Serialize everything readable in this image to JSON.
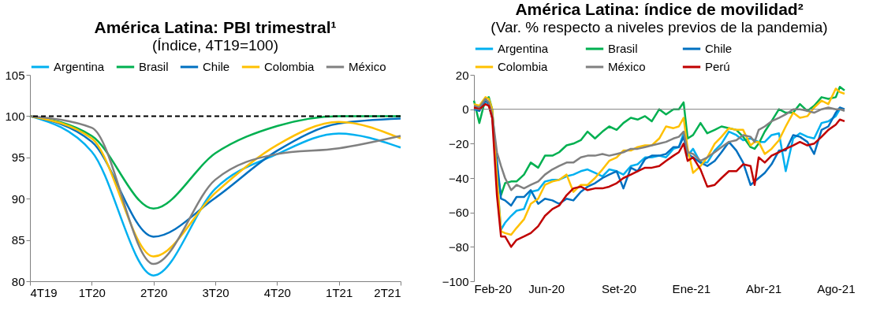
{
  "chart_data": [
    {
      "type": "line",
      "title": "América Latina: PBI trimestral¹",
      "subtitle": "(Índice, 4T19=100)",
      "categories": [
        "4T19",
        "1T20",
        "2T20",
        "3T20",
        "4T20",
        "1T21",
        "2T21"
      ],
      "series": [
        {
          "name": "Argentina",
          "color": "#00b0f0",
          "values": [
            100,
            95.7,
            80.7,
            91.2,
            95.4,
            97.9,
            96.2
          ]
        },
        {
          "name": "Brasil",
          "color": "#00b050",
          "values": [
            100,
            97.6,
            88.8,
            95.5,
            98.8,
            100.0,
            100.0
          ]
        },
        {
          "name": "Chile",
          "color": "#0070c0",
          "values": [
            100,
            96.9,
            85.4,
            90.1,
            95.8,
            99.1,
            99.7
          ]
        },
        {
          "name": "Colombia",
          "color": "#ffc000",
          "values": [
            100,
            97.3,
            83.0,
            90.7,
            96.5,
            99.3,
            97.3
          ]
        },
        {
          "name": "México",
          "color": "#808080",
          "values": [
            100,
            98.6,
            82.1,
            92.3,
            95.4,
            96.1,
            97.6
          ]
        }
      ],
      "ylim": [
        80,
        105
      ],
      "yticks": [
        80,
        85,
        90,
        95,
        100,
        105
      ],
      "ref_lines": [
        {
          "axis": "y",
          "value": 100,
          "color": "#000000",
          "line_style": "dashed"
        }
      ],
      "legend": "top",
      "grid": false,
      "marker": "none",
      "line_style": "solid"
    },
    {
      "type": "line",
      "title": "América Latina: índice de movilidad²",
      "subtitle": "(Var. % respecto a niveles previos de la pandemia)",
      "x": [
        "2020-02-15",
        "2020-02-23",
        "2020-03-03",
        "2020-03-08",
        "2020-03-13",
        "2020-03-20",
        "2020-03-26",
        "2020-04-01",
        "2020-04-10",
        "2020-04-18",
        "2020-04-29",
        "2020-05-09",
        "2020-05-20",
        "2020-05-30",
        "2020-06-10",
        "2020-06-20",
        "2020-07-01",
        "2020-07-11",
        "2020-07-22",
        "2020-08-01",
        "2020-08-12",
        "2020-08-23",
        "2020-09-02",
        "2020-09-13",
        "2020-09-23",
        "2020-10-04",
        "2020-10-14",
        "2020-10-25",
        "2020-11-04",
        "2020-11-15",
        "2020-11-25",
        "2020-12-06",
        "2020-12-14",
        "2020-12-21",
        "2020-12-27",
        "2021-01-04",
        "2021-01-15",
        "2021-01-25",
        "2021-02-05",
        "2021-02-15",
        "2021-02-26",
        "2021-03-09",
        "2021-03-19",
        "2021-03-30",
        "2021-04-05",
        "2021-04-11",
        "2021-04-20",
        "2021-04-30",
        "2021-05-11",
        "2021-05-21",
        "2021-06-01",
        "2021-06-11",
        "2021-06-22",
        "2021-07-02",
        "2021-07-13",
        "2021-07-23",
        "2021-08-03",
        "2021-08-09",
        "2021-08-16"
      ],
      "series": [
        {
          "name": "Argentina",
          "color": "#00b0f0",
          "values": [
            null,
            null,
            null,
            null,
            null,
            -40,
            -70,
            -66,
            -62,
            -59,
            -58,
            -48,
            -47,
            -42,
            -41,
            -41,
            -39,
            -38,
            -36,
            -35,
            -37,
            -39,
            -35,
            -36,
            -38,
            -33,
            -32,
            -28,
            -28,
            -27,
            -28,
            -23,
            -22,
            -14,
            -27,
            -23,
            -31,
            -31,
            -24,
            -20,
            -13,
            -15,
            -18,
            -17,
            -18,
            -19,
            -19,
            -15,
            -14,
            -36,
            -17,
            -14,
            -16,
            -17,
            -8,
            -7,
            -4,
            0,
            0
          ]
        },
        {
          "name": "Brasil",
          "color": "#00b050",
          "values": [
            5,
            -8,
            6,
            7,
            0,
            -35,
            -50,
            -43,
            -42,
            -42,
            -38,
            -31,
            -34,
            -27,
            -27,
            -25,
            -21,
            -20,
            -18,
            -13,
            -17,
            -13,
            -10,
            -12,
            -8,
            -5,
            -6,
            -4,
            -7,
            0,
            -3,
            0,
            0,
            4,
            -17,
            -15,
            -8,
            -14,
            -12,
            -10,
            -11,
            -12,
            -16,
            -22,
            -23,
            -20,
            -13,
            -7,
            0,
            -2,
            -2,
            3,
            -1,
            2,
            7,
            6,
            7,
            13,
            11
          ]
        },
        {
          "name": "Chile",
          "color": "#0070c0",
          "values": [
            0,
            -1,
            5,
            3,
            -5,
            -30,
            -52,
            -53,
            -56,
            -51,
            -51,
            -47,
            -55,
            -52,
            -53,
            -55,
            -52,
            -53,
            -48,
            -45,
            -43,
            -40,
            -38,
            -36,
            -46,
            -34,
            -36,
            -29,
            -27,
            -27,
            -26,
            -22,
            -22,
            -16,
            -26,
            -28,
            -31,
            -33,
            -30,
            -25,
            -19,
            -24,
            -31,
            -44,
            -42,
            -40,
            -37,
            -32,
            -24,
            -24,
            -15,
            -16,
            -19,
            -26,
            -12,
            -10,
            -2,
            1,
            0
          ]
        },
        {
          "name": "Colombia",
          "color": "#ffc000",
          "values": [
            3,
            2,
            7,
            6,
            0,
            -40,
            -71,
            -72,
            -73,
            -69,
            -64,
            -55,
            -52,
            -44,
            -42,
            -41,
            -38,
            -48,
            -44,
            -44,
            -40,
            -35,
            -30,
            -28,
            -24,
            -24,
            -22,
            -21,
            -21,
            -17,
            -10,
            -11,
            -10,
            -5,
            -23,
            -37,
            -33,
            -28,
            -20,
            -16,
            -11,
            -12,
            -12,
            -21,
            -19,
            -19,
            -26,
            -23,
            -18,
            -10,
            -2,
            -5,
            -4,
            1,
            5,
            3,
            12,
            10,
            9
          ]
        },
        {
          "name": "México",
          "color": "#808080",
          "values": [
            2,
            1,
            6,
            4,
            -3,
            -25,
            -33,
            -40,
            -47,
            -44,
            -46,
            -44,
            -42,
            -38,
            -35,
            -33,
            -31,
            -31,
            -28,
            -27,
            -27,
            -26,
            -27,
            -26,
            -25,
            -23,
            -23,
            -22,
            -21,
            -20,
            -19,
            -17,
            -16,
            -13,
            -25,
            -26,
            -30,
            -28,
            -25,
            -22,
            -19,
            -18,
            -15,
            -16,
            -19,
            -12,
            -10,
            -7,
            -5,
            -3,
            0,
            0,
            -1,
            -2,
            0,
            1,
            0,
            0,
            -1
          ]
        },
        {
          "name": "Perú",
          "color": "#c00000",
          "values": [
            1,
            0,
            3,
            2,
            -5,
            -50,
            -74,
            -74,
            -80,
            -76,
            -74,
            -72,
            -68,
            -62,
            -58,
            -56,
            -50,
            -46,
            -45,
            -47,
            -46,
            -46,
            -45,
            -43,
            -40,
            -38,
            -36,
            -34,
            -34,
            -33,
            -30,
            -27,
            -25,
            -20,
            -30,
            -28,
            -35,
            -45,
            -44,
            -40,
            -36,
            -36,
            -32,
            -33,
            -44,
            -28,
            -31,
            -27,
            -25,
            -23,
            -21,
            -19,
            -21,
            -20,
            -16,
            -12,
            -9,
            -6,
            -7
          ]
        }
      ],
      "xlim": [
        "2020-02-15",
        "2021-08-16"
      ],
      "xticks": [
        {
          "value": "2020-02-15",
          "label": "Feb-20"
        },
        {
          "value": "2020-06-01",
          "label": "Jun-20"
        },
        {
          "value": "2020-09-16",
          "label": "Set-20"
        },
        {
          "value": "2021-01-01",
          "label": "Ene-21"
        },
        {
          "value": "2021-04-18",
          "label": "Abr-21"
        },
        {
          "value": "2021-08-03",
          "label": "Ago-21"
        }
      ],
      "ylim": [
        -100,
        20
      ],
      "yticks": [
        -100,
        -80,
        -60,
        -40,
        -20,
        0,
        20
      ],
      "ref_lines": [
        {
          "axis": "y",
          "value": 0,
          "color": "#808080",
          "line_style": "solid"
        }
      ],
      "legend": "top",
      "grid": false,
      "marker": "none",
      "line_style": "solid"
    }
  ]
}
